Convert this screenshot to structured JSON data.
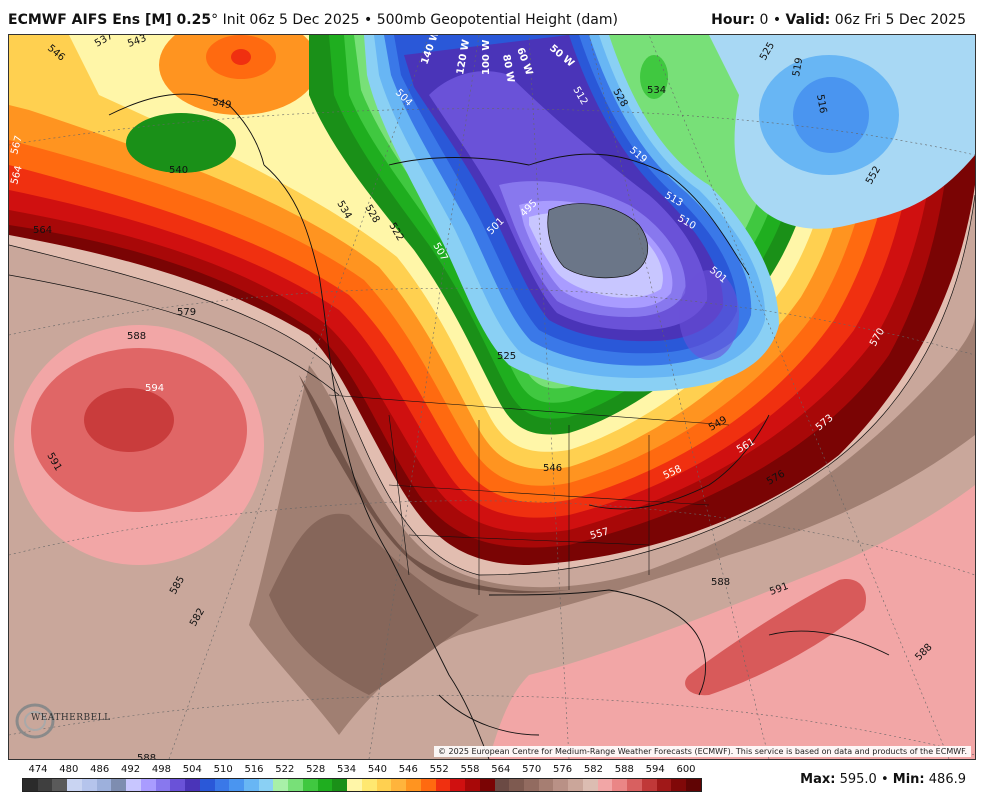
{
  "header": {
    "model": "ECMWF AIFS Ens [M] 0.25",
    "degree": "°",
    "init": "Init 06z 5 Dec 2025",
    "sep": "•",
    "field": "500mb Geopotential Height (dam)",
    "hour_label": "Hour:",
    "hour_value": "0",
    "valid_label": "Valid:",
    "valid_value": "06z Fri 5 Dec 2025"
  },
  "map": {
    "copyright": "© 2025 European Centre for Medium-Range Weather Forecasts (ECMWF). This service is based on data and products of the ECMWF.",
    "logo_text": "WEATHERBELL",
    "contour_labels": [
      {
        "id": "l537",
        "text": "537"
      },
      {
        "id": "l543",
        "text": "543"
      },
      {
        "id": "l546a",
        "text": "546"
      },
      {
        "id": "l549",
        "text": "549"
      },
      {
        "id": "l540",
        "text": "540"
      },
      {
        "id": "l567",
        "text": "567"
      },
      {
        "id": "l564a",
        "text": "564"
      },
      {
        "id": "l564b",
        "text": "564"
      },
      {
        "id": "l579",
        "text": "579"
      },
      {
        "id": "l588a",
        "text": "588"
      },
      {
        "id": "l594",
        "text": "594"
      },
      {
        "id": "l591a",
        "text": "591"
      },
      {
        "id": "l585",
        "text": "585"
      },
      {
        "id": "l582",
        "text": "582"
      },
      {
        "id": "l588b",
        "text": "588"
      },
      {
        "id": "l504",
        "text": "504"
      },
      {
        "id": "l534",
        "text": "534"
      },
      {
        "id": "l528",
        "text": "528"
      },
      {
        "id": "l522",
        "text": "522"
      },
      {
        "id": "l507",
        "text": "507"
      },
      {
        "id": "l501a",
        "text": "501"
      },
      {
        "id": "l495",
        "text": "495"
      },
      {
        "id": "l525",
        "text": "525"
      },
      {
        "id": "l519",
        "text": "519"
      },
      {
        "id": "l516",
        "text": "516"
      },
      {
        "id": "l513",
        "text": "513"
      },
      {
        "id": "l510",
        "text": "510"
      },
      {
        "id": "l501b",
        "text": "501"
      },
      {
        "id": "l552",
        "text": "552"
      },
      {
        "id": "l570",
        "text": "570"
      },
      {
        "id": "l573",
        "text": "573"
      },
      {
        "id": "l561",
        "text": "561"
      },
      {
        "id": "l576",
        "text": "576"
      },
      {
        "id": "l558",
        "text": "558"
      },
      {
        "id": "l549b",
        "text": "549"
      },
      {
        "id": "l546b",
        "text": "546"
      },
      {
        "id": "l557",
        "text": "557"
      },
      {
        "id": "l588c",
        "text": "588"
      },
      {
        "id": "l591b",
        "text": "591"
      },
      {
        "id": "l588d",
        "text": "588"
      },
      {
        "id": "l512",
        "text": "512"
      },
      {
        "id": "l528b",
        "text": "528"
      },
      {
        "id": "l534b",
        "text": "534"
      },
      {
        "id": "l519b",
        "text": "519"
      },
      {
        "id": "l525b",
        "text": "525"
      }
    ],
    "lon_labels": [
      {
        "id": "w140",
        "text": "140 W"
      },
      {
        "id": "w120",
        "text": "120 W"
      },
      {
        "id": "w100",
        "text": "100 W"
      },
      {
        "id": "w80",
        "text": "80 W"
      },
      {
        "id": "w60",
        "text": "60 W"
      },
      {
        "id": "w50",
        "text": "50 W"
      }
    ]
  },
  "colorbar": {
    "ticks": [
      "474",
      "480",
      "486",
      "492",
      "498",
      "504",
      "510",
      "516",
      "522",
      "528",
      "534",
      "540",
      "546",
      "552",
      "558",
      "564",
      "570",
      "576",
      "582",
      "588",
      "594",
      "600"
    ],
    "colors": [
      "#2b2b2b",
      "#3f3f3f",
      "#5a5a5a",
      "#c9d4f2",
      "#b5c4ec",
      "#9db0dc",
      "#7e8db0",
      "#c8c6ff",
      "#a99cff",
      "#8878ee",
      "#6a52d8",
      "#4a34b8",
      "#2a58d8",
      "#3a78e8",
      "#4a95f0",
      "#68b6f4",
      "#8ad0f4",
      "#a8f0a8",
      "#78e078",
      "#40c840",
      "#1fae1f",
      "#1a9018",
      "#fff6a8",
      "#ffe870",
      "#ffd050",
      "#ffb43c",
      "#ff9420",
      "#ff6a10",
      "#f03010",
      "#d01010",
      "#a80808",
      "#7a0404",
      "#6b4a44",
      "#7e5a50",
      "#926b60",
      "#a67e72",
      "#b99186",
      "#cba69a",
      "#dcbdb2",
      "#f2a6a6",
      "#ea8686",
      "#d86060",
      "#c03838",
      "#a01818",
      "#800808",
      "#600404"
    ],
    "max_label": "Max:",
    "max_value": "595.0",
    "min_label": "Min:",
    "min_value": "486.9",
    "stats_sep": "•"
  }
}
